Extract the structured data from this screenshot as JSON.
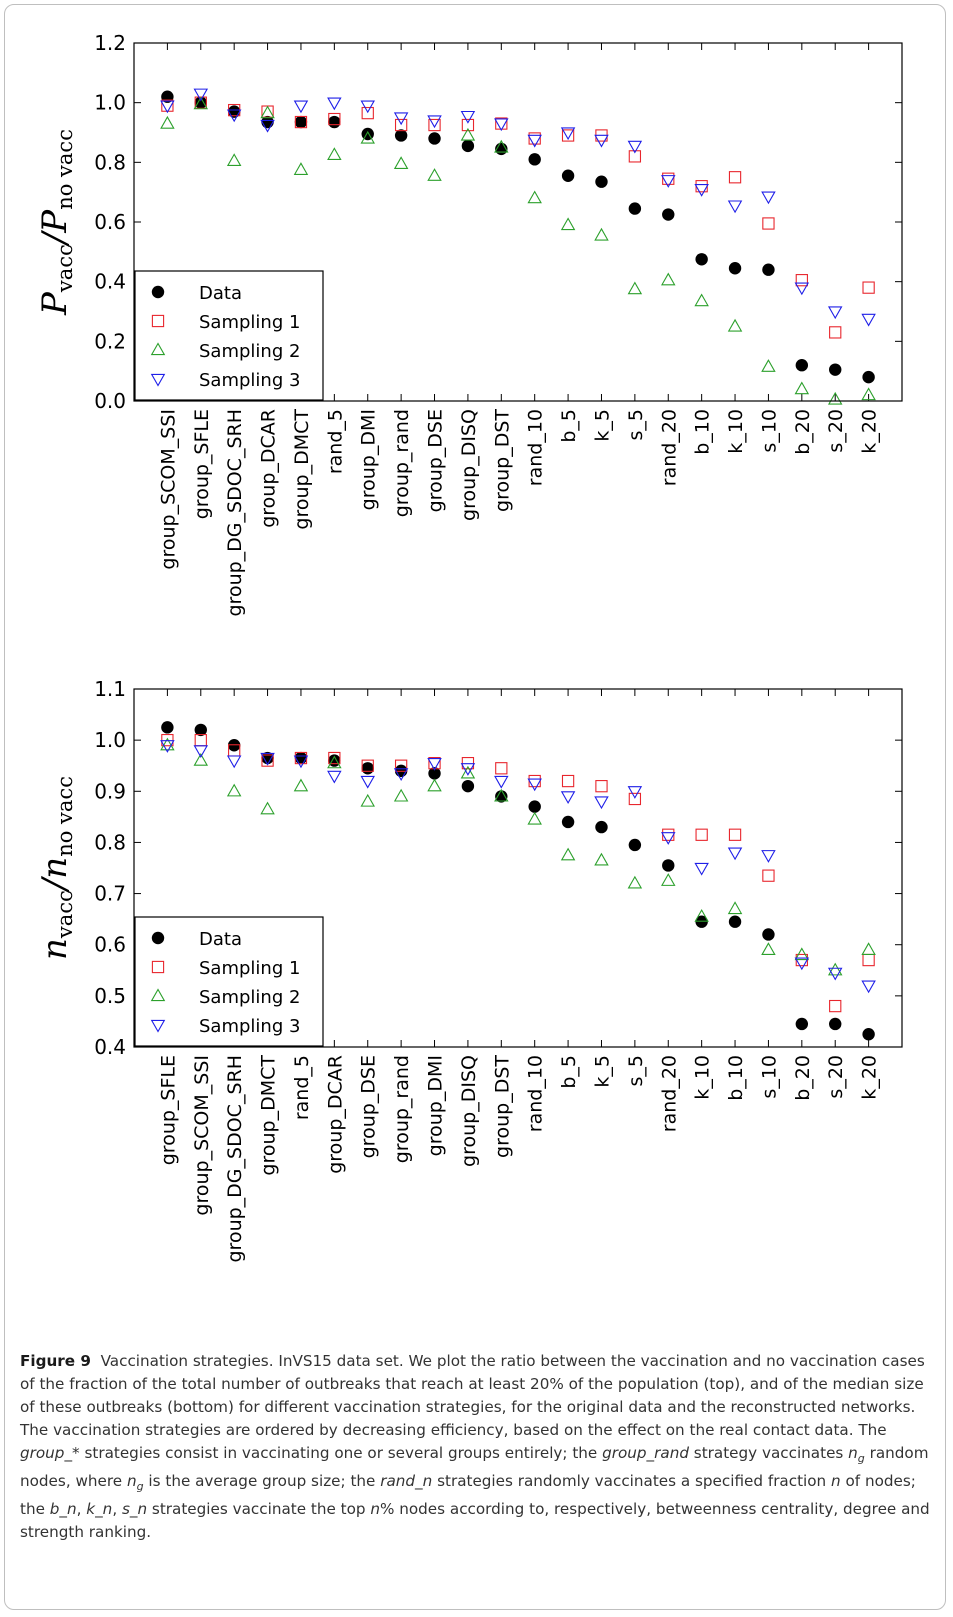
{
  "chart_data": [
    {
      "type": "scatter",
      "ylabel_main": "P",
      "ylabel_num_sub": "vacc",
      "ylabel_sep": "/",
      "ylabel_den_main": "P",
      "ylabel_den_sub": "no vacc",
      "ylim": [
        0.0,
        1.2
      ],
      "yticks": [
        "0.0",
        "0.2",
        "0.4",
        "0.6",
        "0.8",
        "1.0",
        "1.2"
      ],
      "categories": [
        "group_SCOM_SSI",
        "group_SFLE",
        "group_DG_SDOC_SRH",
        "group_DCAR",
        "group_DMCT",
        "rand_5",
        "group_DMI",
        "group_rand",
        "group_DSE",
        "group_DISQ",
        "group_DST",
        "rand_10",
        "b_5",
        "k_5",
        "s_5",
        "rand_20",
        "b_10",
        "k_10",
        "s_10",
        "b_20",
        "s_20",
        "k_20"
      ],
      "legend_position": "lower-left",
      "series": [
        {
          "name": "Data",
          "marker": "circle",
          "color": "#000000",
          "values": [
            1.02,
            1.0,
            0.97,
            0.935,
            0.935,
            0.935,
            0.895,
            0.89,
            0.88,
            0.855,
            0.845,
            0.81,
            0.755,
            0.735,
            0.645,
            0.625,
            0.475,
            0.445,
            0.44,
            0.12,
            0.105,
            0.08
          ]
        },
        {
          "name": "Sampling 1",
          "marker": "square",
          "color": "#e8262d",
          "values": [
            0.99,
            1.0,
            0.975,
            0.97,
            0.935,
            0.945,
            0.965,
            0.925,
            0.925,
            0.925,
            0.93,
            0.88,
            0.89,
            0.89,
            0.82,
            0.745,
            0.72,
            0.75,
            0.595,
            0.405,
            0.23,
            0.38
          ]
        },
        {
          "name": "Sampling 2",
          "marker": "triangle-up",
          "color": "#2ca02c",
          "values": [
            0.93,
            0.995,
            0.805,
            0.965,
            0.775,
            0.825,
            0.88,
            0.795,
            0.755,
            0.89,
            0.85,
            0.68,
            0.59,
            0.555,
            0.375,
            0.405,
            0.335,
            0.25,
            0.115,
            0.04,
            0.005,
            0.02
          ]
        },
        {
          "name": "Sampling 3",
          "marker": "triangle-down",
          "color": "#1f1fe8",
          "values": [
            0.99,
            1.03,
            0.96,
            0.925,
            0.99,
            1.0,
            0.99,
            0.95,
            0.94,
            0.955,
            0.93,
            0.875,
            0.9,
            0.875,
            0.855,
            0.74,
            0.71,
            0.655,
            0.685,
            0.38,
            0.3,
            0.275
          ]
        }
      ]
    },
    {
      "type": "scatter",
      "ylabel_main": "n",
      "ylabel_num_sub": "vacc",
      "ylabel_sep": "/",
      "ylabel_den_main": "n",
      "ylabel_den_sub": "no vacc",
      "ylim": [
        0.4,
        1.1
      ],
      "yticks": [
        "0.4",
        "0.5",
        "0.6",
        "0.7",
        "0.8",
        "0.9",
        "1.0",
        "1.1"
      ],
      "categories": [
        "group_SFLE",
        "group_SCOM_SSI",
        "group_DG_SDOC_SRH",
        "group_DMCT",
        "rand_5",
        "group_DCAR",
        "group_DSE",
        "group_rand",
        "group_DMI",
        "group_DISQ",
        "group_DST",
        "rand_10",
        "b_5",
        "k_5",
        "s_5",
        "rand_20",
        "k_10",
        "b_10",
        "s_10",
        "b_20",
        "s_20",
        "k_20"
      ],
      "legend_position": "lower-left",
      "series": [
        {
          "name": "Data",
          "marker": "circle",
          "color": "#000000",
          "values": [
            1.025,
            1.02,
            0.99,
            0.965,
            0.965,
            0.96,
            0.945,
            0.94,
            0.935,
            0.91,
            0.89,
            0.87,
            0.84,
            0.83,
            0.795,
            0.755,
            0.645,
            0.645,
            0.62,
            0.445,
            0.445,
            0.425
          ]
        },
        {
          "name": "Sampling 1",
          "marker": "square",
          "color": "#e8262d",
          "values": [
            1.0,
            1.0,
            0.98,
            0.96,
            0.965,
            0.965,
            0.95,
            0.95,
            0.955,
            0.955,
            0.945,
            0.92,
            0.92,
            0.91,
            0.885,
            0.815,
            0.815,
            0.815,
            0.735,
            0.57,
            0.48,
            0.57
          ]
        },
        {
          "name": "Sampling 2",
          "marker": "triangle-up",
          "color": "#2ca02c",
          "values": [
            0.99,
            0.96,
            0.9,
            0.865,
            0.91,
            0.955,
            0.88,
            0.89,
            0.91,
            0.935,
            0.89,
            0.845,
            0.775,
            0.765,
            0.72,
            0.725,
            0.655,
            0.67,
            0.59,
            0.58,
            0.55,
            0.59
          ]
        },
        {
          "name": "Sampling 3",
          "marker": "triangle-down",
          "color": "#1f1fe8",
          "values": [
            0.99,
            0.98,
            0.96,
            0.965,
            0.96,
            0.93,
            0.92,
            0.935,
            0.955,
            0.945,
            0.92,
            0.915,
            0.89,
            0.88,
            0.9,
            0.81,
            0.75,
            0.78,
            0.775,
            0.565,
            0.545,
            0.52
          ]
        }
      ]
    }
  ],
  "caption": {
    "figure_label": "Figure 9",
    "parts": [
      {
        "t": "Vaccination strategies. InVS15 data set. We plot the ratio between the vaccination and no vaccination cases of the fraction of the total number of outbreaks that reach at least 20% of the population (top), and of the median size of these outbreaks (bottom) for different vaccination strategies, for the original data and the reconstructed networks. The vaccination strategies are ordered by decreasing efficiency, based on the effect on the real contact data. The ",
        "i": false
      },
      {
        "t": "group_*",
        "i": true
      },
      {
        "t": " strategies consist in vaccinating one or several groups entirely; the ",
        "i": false
      },
      {
        "t": "group_rand",
        "i": true
      },
      {
        "t": " strategy vaccinates ",
        "i": false
      },
      {
        "t": "n",
        "i": true
      },
      {
        "t": "g",
        "i": true,
        "sub": true
      },
      {
        "t": " random nodes, where ",
        "i": false
      },
      {
        "t": "n",
        "i": true
      },
      {
        "t": "g",
        "i": true,
        "sub": true
      },
      {
        "t": " is the average group size; the ",
        "i": false
      },
      {
        "t": "rand_n",
        "i": true
      },
      {
        "t": " strategies randomly vaccinates a specified fraction ",
        "i": false
      },
      {
        "t": "n",
        "i": true
      },
      {
        "t": " of nodes; the ",
        "i": false
      },
      {
        "t": "b_n",
        "i": true
      },
      {
        "t": ", ",
        "i": false
      },
      {
        "t": "k_n",
        "i": true
      },
      {
        "t": ", ",
        "i": false
      },
      {
        "t": "s_n",
        "i": true
      },
      {
        "t": " strategies vaccinate the top ",
        "i": false
      },
      {
        "t": "n",
        "i": true
      },
      {
        "t": "% nodes according to, respectively, betweenness centrality, degree and strength ranking.",
        "i": false
      }
    ]
  }
}
